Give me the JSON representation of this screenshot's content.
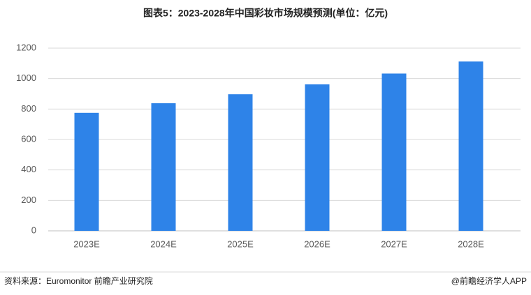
{
  "chart_data": {
    "type": "bar",
    "title": "图表5：2023-2028年中国彩妆市场规模预测(单位：亿元)",
    "categories": [
      "2023E",
      "2024E",
      "2025E",
      "2026E",
      "2027E",
      "2028E"
    ],
    "values": [
      775,
      838,
      897,
      962,
      1033,
      1112
    ],
    "color": "#2e83e8",
    "ylim": [
      0,
      1200
    ],
    "yticks": [
      0,
      200,
      400,
      600,
      800,
      1000,
      1200
    ],
    "grid": true
  },
  "footer": {
    "source": "资料来源：Euromonitor 前瞻产业研究院",
    "brand": "@前瞻经济学人APP"
  }
}
